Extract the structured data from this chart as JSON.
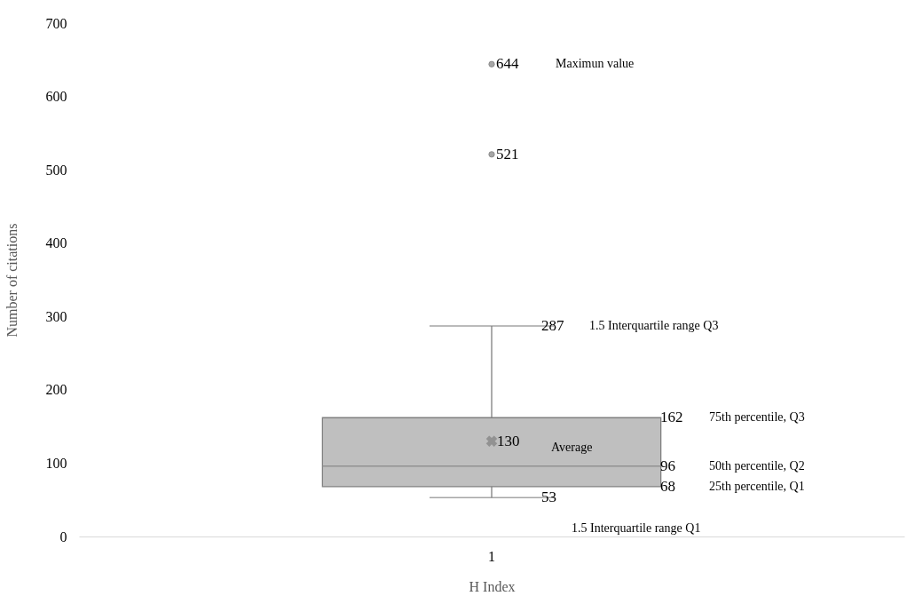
{
  "chart_data": {
    "type": "box",
    "xlabel": "H Index",
    "ylabel": "Number of citations",
    "categories": [
      "1"
    ],
    "boxes": [
      {
        "low": 53,
        "q1": 68,
        "median": 96,
        "q3": 162,
        "high": 287,
        "mean": 130,
        "outliers": [
          521,
          644
        ]
      }
    ],
    "ylim": [
      0,
      700
    ],
    "yticks": [
      0,
      100,
      200,
      300,
      400,
      500,
      600,
      700
    ],
    "grid": false,
    "marker": "circle",
    "annotations": [
      "644",
      "Maximun value",
      "521",
      "287",
      "1.5 Interquartile range Q3",
      "162",
      "75th percentile, Q3",
      "130",
      "Average",
      "96",
      "50th percentile, Q2",
      "68",
      "25th percentile, Q1",
      "53",
      "1.5 Interquartile range Q1"
    ]
  }
}
